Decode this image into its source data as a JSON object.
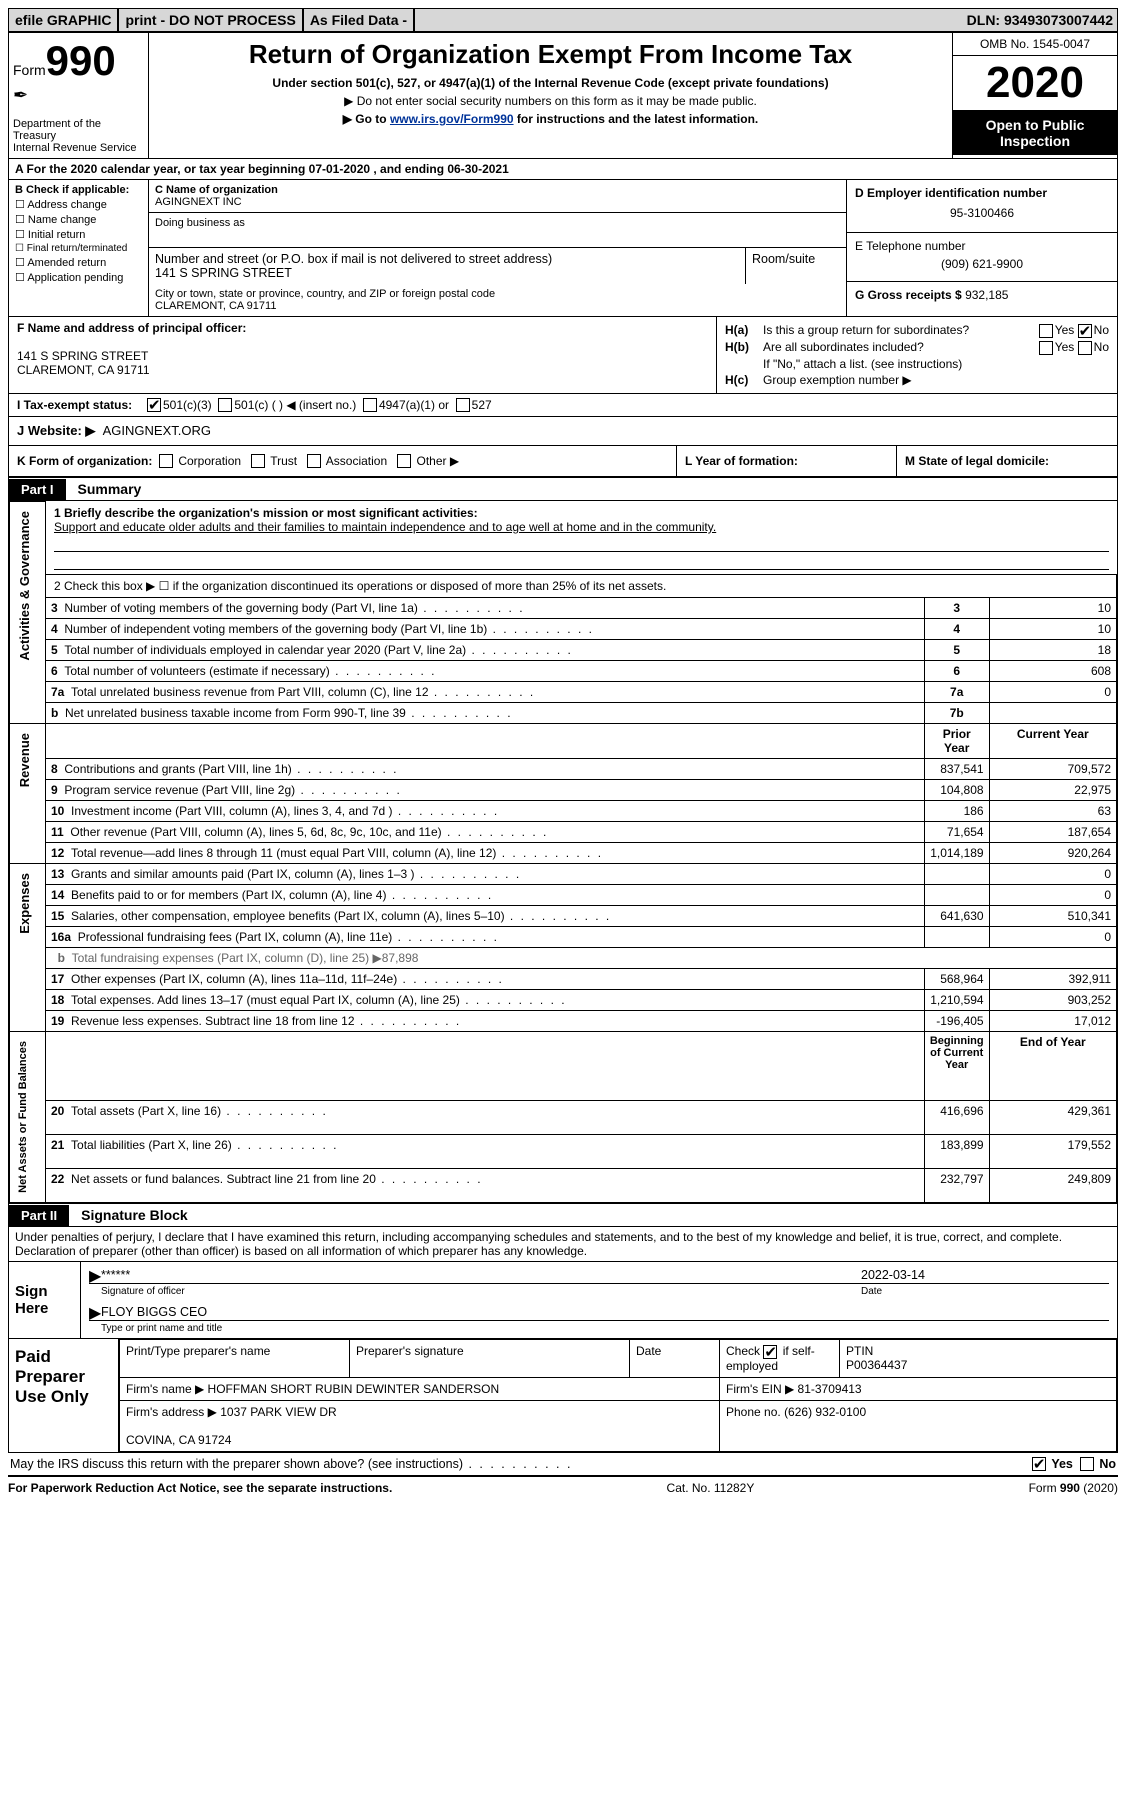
{
  "topbar": {
    "efile": "efile GRAPHIC",
    "print": "print - DO NOT PROCESS",
    "filed": "As Filed Data -",
    "dln_lbl": "DLN:",
    "dln": "93493073007442"
  },
  "header": {
    "form_word": "Form",
    "form_num": "990",
    "dept": "Department of the Treasury\nInternal Revenue Service",
    "title": "Return of Organization Exempt From Income Tax",
    "sub1": "Under section 501(c), 527, or 4947(a)(1) of the Internal Revenue Code (except private foundations)",
    "sub2": "▶ Do not enter social security numbers on this form as it may be made public.",
    "sub3_pre": "▶ Go to ",
    "sub3_link": "www.irs.gov/Form990",
    "sub3_post": " for instructions and the latest information.",
    "omb": "OMB No. 1545-0047",
    "year": "2020",
    "open": "Open to Public Inspection"
  },
  "line_a": "A  For the 2020 calendar year, or tax year beginning 07-01-2020   , and ending 06-30-2021",
  "box_b": {
    "lbl": "B Check if applicable:",
    "opts": [
      "Address change",
      "Name change",
      "Initial return",
      "Final return/terminated",
      "Amended return",
      "Application pending"
    ]
  },
  "box_c": {
    "name_lbl": "C Name of organization",
    "name": "AGINGNEXT INC",
    "dba_lbl": "Doing business as",
    "addr_lbl": "Number and street (or P.O. box if mail is not delivered to street address)",
    "room_lbl": "Room/suite",
    "addr": "141 S SPRING STREET",
    "city_lbl": "City or town, state or province, country, and ZIP or foreign postal code",
    "city": "CLAREMONT, CA  91711"
  },
  "box_d": {
    "lbl": "D Employer identification number",
    "val": "95-3100466"
  },
  "box_e": {
    "lbl": "E Telephone number",
    "val": "(909) 621-9900"
  },
  "box_g": {
    "lbl": "G Gross receipts $",
    "val": "932,185"
  },
  "box_f": {
    "lbl": "F  Name and address of principal officer:",
    "l1": "141 S SPRING STREET",
    "l2": "CLAREMONT, CA  91711"
  },
  "box_h": {
    "a": "Is this a group return for subordinates?",
    "b": "Are all subordinates included?",
    "note": "If \"No,\" attach a list. (see instructions)",
    "c": "Group exemption number ▶",
    "yes": "Yes",
    "no": "No"
  },
  "row_i": {
    "lbl": "I   Tax-exempt status:",
    "o1": "501(c)(3)",
    "o2": "501(c) (   ) ◀ (insert no.)",
    "o3": "4947(a)(1) or",
    "o4": "527"
  },
  "row_j": {
    "lbl": "J   Website: ▶",
    "val": "AGINGNEXT.ORG"
  },
  "row_k": {
    "lbl": "K Form of organization:",
    "opts": [
      "Corporation",
      "Trust",
      "Association",
      "Other ▶"
    ]
  },
  "row_l": "L Year of formation:",
  "row_m": "M State of legal domicile:",
  "part1": {
    "tag": "Part I",
    "title": "Summary"
  },
  "sections": {
    "ag": "Activities & Governance",
    "rev": "Revenue",
    "exp": "Expenses",
    "na": "Net Assets or Fund Balances"
  },
  "summary": {
    "l1_lbl": "1  Briefly describe the organization's mission or most significant activities:",
    "l1_val": "Support and educate older adults and their families to maintain independence and to age well at home and in the community.",
    "l2": "2   Check this box ▶ ☐  if the organization discontinued its operations or disposed of more than 25% of its net assets.",
    "rows_ag": [
      {
        "n": "3",
        "t": "Number of voting members of the governing body (Part VI, line 1a)",
        "c": "3",
        "v": "10"
      },
      {
        "n": "4",
        "t": "Number of independent voting members of the governing body (Part VI, line 1b)",
        "c": "4",
        "v": "10"
      },
      {
        "n": "5",
        "t": "Total number of individuals employed in calendar year 2020 (Part V, line 2a)",
        "c": "5",
        "v": "18"
      },
      {
        "n": "6",
        "t": "Total number of volunteers (estimate if necessary)",
        "c": "6",
        "v": "608"
      },
      {
        "n": "7a",
        "t": "Total unrelated business revenue from Part VIII, column (C), line 12",
        "c": "7a",
        "v": "0"
      },
      {
        "n": "b",
        "t": "Net unrelated business taxable income from Form 990-T, line 39",
        "c": "7b",
        "v": ""
      }
    ],
    "col_hdr_prior": "Prior Year",
    "col_hdr_curr": "Current Year",
    "rows_rev": [
      {
        "n": "8",
        "t": "Contributions and grants (Part VIII, line 1h)",
        "p": "837,541",
        "c": "709,572"
      },
      {
        "n": "9",
        "t": "Program service revenue (Part VIII, line 2g)",
        "p": "104,808",
        "c": "22,975"
      },
      {
        "n": "10",
        "t": "Investment income (Part VIII, column (A), lines 3, 4, and 7d )",
        "p": "186",
        "c": "63"
      },
      {
        "n": "11",
        "t": "Other revenue (Part VIII, column (A), lines 5, 6d, 8c, 9c, 10c, and 11e)",
        "p": "71,654",
        "c": "187,654"
      },
      {
        "n": "12",
        "t": "Total revenue—add lines 8 through 11 (must equal Part VIII, column (A), line 12)",
        "p": "1,014,189",
        "c": "920,264"
      }
    ],
    "rows_exp": [
      {
        "n": "13",
        "t": "Grants and similar amounts paid (Part IX, column (A), lines 1–3 )",
        "p": "",
        "c": "0"
      },
      {
        "n": "14",
        "t": "Benefits paid to or for members (Part IX, column (A), line 4)",
        "p": "",
        "c": "0"
      },
      {
        "n": "15",
        "t": "Salaries, other compensation, employee benefits (Part IX, column (A), lines 5–10)",
        "p": "641,630",
        "c": "510,341"
      },
      {
        "n": "16a",
        "t": "Professional fundraising fees (Part IX, column (A), line 11e)",
        "p": "",
        "c": "0"
      },
      {
        "n": "b",
        "t": "Total fundraising expenses (Part IX, column (D), line 25) ▶87,898",
        "p": null,
        "c": null
      },
      {
        "n": "17",
        "t": "Other expenses (Part IX, column (A), lines 11a–11d, 11f–24e)",
        "p": "568,964",
        "c": "392,911"
      },
      {
        "n": "18",
        "t": "Total expenses. Add lines 13–17 (must equal Part IX, column (A), line 25)",
        "p": "1,210,594",
        "c": "903,252"
      },
      {
        "n": "19",
        "t": "Revenue less expenses. Subtract line 18 from line 12",
        "p": "-196,405",
        "c": "17,012"
      }
    ],
    "col_hdr_beg": "Beginning of Current Year",
    "col_hdr_end": "End of Year",
    "rows_na": [
      {
        "n": "20",
        "t": "Total assets (Part X, line 16)",
        "p": "416,696",
        "c": "429,361"
      },
      {
        "n": "21",
        "t": "Total liabilities (Part X, line 26)",
        "p": "183,899",
        "c": "179,552"
      },
      {
        "n": "22",
        "t": "Net assets or fund balances. Subtract line 21 from line 20",
        "p": "232,797",
        "c": "249,809"
      }
    ]
  },
  "part2": {
    "tag": "Part II",
    "title": "Signature Block"
  },
  "perjury": "Under penalties of perjury, I declare that I have examined this return, including accompanying schedules and statements, and to the best of my knowledge and belief, it is true, correct, and complete. Declaration of preparer (other than officer) is based on all information of which preparer has any knowledge.",
  "sign": {
    "lbl": "Sign Here",
    "stars": "******",
    "sig_lbl": "Signature of officer",
    "date": "2022-03-14",
    "date_lbl": "Date",
    "name": "FLOY BIGGS CEO",
    "name_lbl": "Type or print name and title"
  },
  "prep": {
    "lbl": "Paid Preparer Use Only",
    "h1": "Print/Type preparer's name",
    "h2": "Preparer's signature",
    "h3": "Date",
    "h4a": "Check",
    "h4b": "if self-employed",
    "h5": "PTIN",
    "ptin": "P00364437",
    "firm_lbl": "Firm's name    ▶",
    "firm": "HOFFMAN SHORT RUBIN DEWINTER SANDERSON",
    "ein_lbl": "Firm's EIN ▶",
    "ein": "81-3709413",
    "addr_lbl": "Firm's address ▶",
    "addr1": "1037 PARK VIEW DR",
    "addr2": "COVINA, CA  91724",
    "ph_lbl": "Phone no.",
    "ph": "(626) 932-0100"
  },
  "discuss": "May the IRS discuss this return with the preparer shown above? (see instructions)",
  "footer": {
    "l": "For Paperwork Reduction Act Notice, see the separate instructions.",
    "m": "Cat. No. 11282Y",
    "r": "Form 990 (2020)"
  }
}
